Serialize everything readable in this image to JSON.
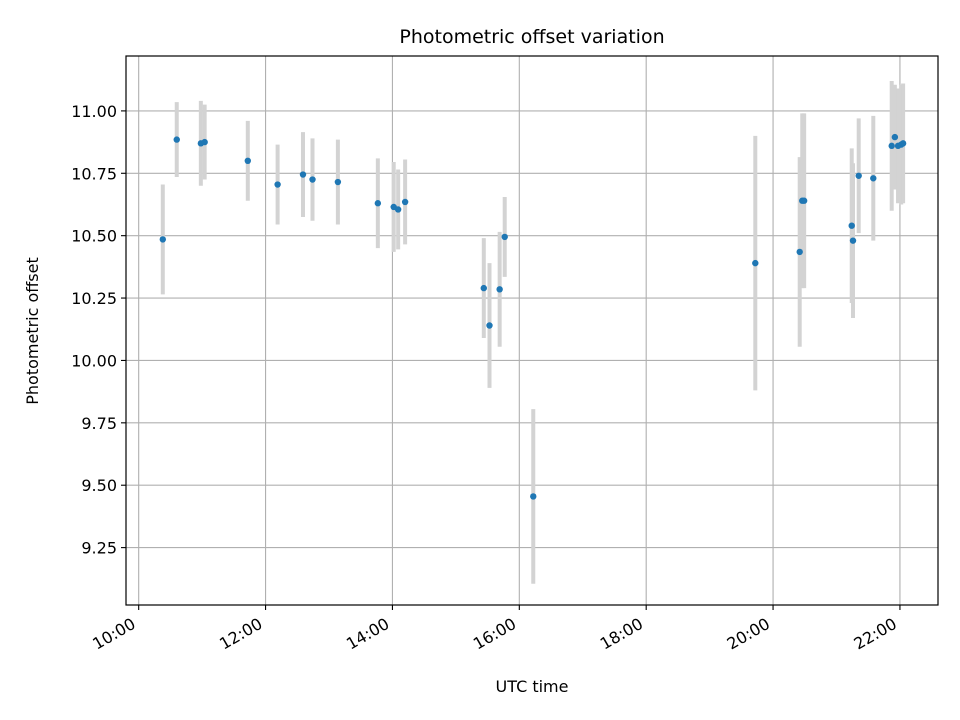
{
  "chart_data": {
    "type": "scatter",
    "title": "Photometric offset variation",
    "xlabel": "UTC time",
    "ylabel": "Photometric offset",
    "x_unit": "UTC hours",
    "xlim": [
      9.8,
      22.6
    ],
    "ylim": [
      9.02,
      11.22
    ],
    "x_ticks": [
      10,
      12,
      14,
      16,
      18,
      20,
      22
    ],
    "x_tick_labels": [
      "10:00",
      "12:00",
      "14:00",
      "16:00",
      "18:00",
      "20:00",
      "22:00"
    ],
    "y_ticks": [
      9.25,
      9.5,
      9.75,
      10.0,
      10.25,
      10.5,
      10.75,
      11.0
    ],
    "y_tick_labels": [
      "9.25",
      "9.50",
      "9.75",
      "10.00",
      "10.25",
      "10.50",
      "10.75",
      "11.00"
    ],
    "grid": true,
    "marker_color": "#1f77b4",
    "errorbar_color": "#d3d3d3",
    "points": [
      {
        "t": "10:23",
        "x": 10.38,
        "y": 10.485,
        "err": 0.22
      },
      {
        "t": "10:36",
        "x": 10.6,
        "y": 10.885,
        "err": 0.15
      },
      {
        "t": "10:59",
        "x": 10.98,
        "y": 10.87,
        "err": 0.17
      },
      {
        "t": "11:02",
        "x": 11.04,
        "y": 10.875,
        "err": 0.15
      },
      {
        "t": "11:43",
        "x": 11.72,
        "y": 10.8,
        "err": 0.16
      },
      {
        "t": "12:11",
        "x": 12.19,
        "y": 10.705,
        "err": 0.16
      },
      {
        "t": "12:35",
        "x": 12.59,
        "y": 10.745,
        "err": 0.17
      },
      {
        "t": "12:44",
        "x": 12.74,
        "y": 10.725,
        "err": 0.165
      },
      {
        "t": "13:08",
        "x": 13.14,
        "y": 10.715,
        "err": 0.17
      },
      {
        "t": "13:46",
        "x": 13.77,
        "y": 10.63,
        "err": 0.18
      },
      {
        "t": "14:01",
        "x": 14.02,
        "y": 10.615,
        "err": 0.18
      },
      {
        "t": "14:05",
        "x": 14.09,
        "y": 10.605,
        "err": 0.16
      },
      {
        "t": "14:12",
        "x": 14.2,
        "y": 10.635,
        "err": 0.17
      },
      {
        "t": "15:26",
        "x": 15.44,
        "y": 10.29,
        "err": 0.2
      },
      {
        "t": "15:32",
        "x": 15.53,
        "y": 10.14,
        "err": 0.25
      },
      {
        "t": "15:41",
        "x": 15.69,
        "y": 10.285,
        "err": 0.23
      },
      {
        "t": "15:46",
        "x": 15.77,
        "y": 10.495,
        "err": 0.16
      },
      {
        "t": "16:13",
        "x": 16.22,
        "y": 9.455,
        "err": 0.35
      },
      {
        "t": "19:43",
        "x": 19.72,
        "y": 10.39,
        "err": 0.51
      },
      {
        "t": "20:25",
        "x": 20.42,
        "y": 10.435,
        "err": 0.38
      },
      {
        "t": "20:27",
        "x": 20.46,
        "y": 10.64,
        "err": 0.35
      },
      {
        "t": "20:29",
        "x": 20.49,
        "y": 10.64,
        "err": 0.35
      },
      {
        "t": "21:14",
        "x": 21.24,
        "y": 10.54,
        "err": 0.31
      },
      {
        "t": "21:16",
        "x": 21.26,
        "y": 10.48,
        "err": 0.31
      },
      {
        "t": "21:21",
        "x": 21.35,
        "y": 10.74,
        "err": 0.23
      },
      {
        "t": "21:35",
        "x": 21.58,
        "y": 10.73,
        "err": 0.25
      },
      {
        "t": "21:52",
        "x": 21.87,
        "y": 10.86,
        "err": 0.26
      },
      {
        "t": "21:55",
        "x": 21.92,
        "y": 10.895,
        "err": 0.21
      },
      {
        "t": "21:58",
        "x": 21.97,
        "y": 10.86,
        "err": 0.23
      },
      {
        "t": "22:01",
        "x": 22.02,
        "y": 10.865,
        "err": 0.24
      },
      {
        "t": "22:03",
        "x": 22.05,
        "y": 10.87,
        "err": 0.24
      }
    ]
  }
}
